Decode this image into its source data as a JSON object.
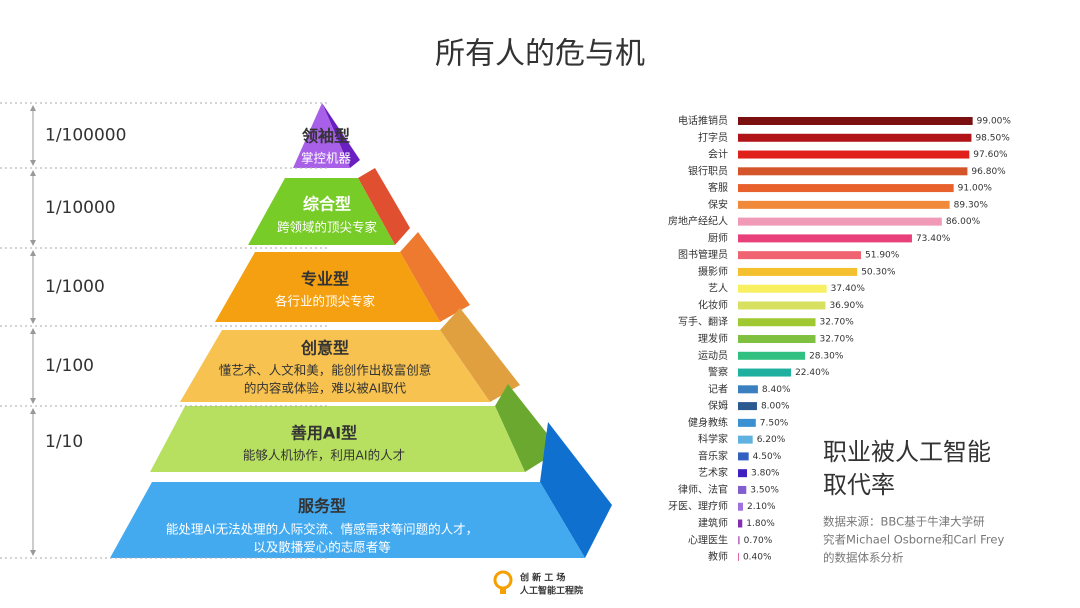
{
  "title": "所有人的危与机",
  "pyramid": {
    "levels": [
      {
        "ratio": "1/100000",
        "name": "领袖型",
        "desc": [
          "掌控机器"
        ]
      },
      {
        "ratio": "1/10000",
        "name": "综合型",
        "desc": [
          "跨领域的顶尖专家"
        ]
      },
      {
        "ratio": "1/1000",
        "name": "专业型",
        "desc": [
          "各行业的顶尖专家"
        ]
      },
      {
        "ratio": "1/100",
        "name": "创意型",
        "desc": [
          "懂艺术、人文和美，能创作出极富创意",
          "的内容或体验，难以被AI取代"
        ]
      },
      {
        "ratio": "1/10",
        "name": "善用AI型",
        "desc": [
          "能够人机协作，利用AI的人才"
        ]
      },
      {
        "ratio": null,
        "name": "服务型",
        "desc": [
          "能处理AI无法处理的人际交流、情感需求等问题的人才，",
          "以及散播爱心的志愿者等"
        ]
      }
    ]
  },
  "chart_data": {
    "type": "bar",
    "orientation": "horizontal",
    "categories": [
      "电话推销员",
      "打字员",
      "会计",
      "银行职员",
      "客服",
      "保安",
      "房地产经纪人",
      "厨师",
      "图书管理员",
      "摄影师",
      "艺人",
      "化妆师",
      "写手、翻译",
      "理发师",
      "运动员",
      "警察",
      "记者",
      "保姆",
      "健身教练",
      "科学家",
      "音乐家",
      "艺术家",
      "律师、法官",
      "牙医、理疗师",
      "建筑师",
      "心理医生",
      "教师"
    ],
    "values": [
      99,
      98.5,
      97.6,
      96.8,
      91,
      89.3,
      86,
      73.4,
      51.9,
      50.3,
      37.4,
      36.9,
      32.7,
      32.7,
      28.3,
      22.4,
      8.4,
      8,
      7.5,
      6.2,
      4.5,
      3.8,
      3.5,
      2.1,
      1.8,
      0.7,
      0.4
    ],
    "value_labels": [
      "99.00%",
      "98.50%",
      "97.60%",
      "96.80%",
      "91.00%",
      "89.30%",
      "86.00%",
      "73.40%",
      "51.90%",
      "50.30%",
      "37.40%",
      "36.90%",
      "32.70%",
      "32.70%",
      "28.30%",
      "22.40%",
      "8.40%",
      "8.00%",
      "7.50%",
      "6.20%",
      "4.50%",
      "3.80%",
      "3.50%",
      "2.10%",
      "1.80%",
      "0.70%",
      "0.40%"
    ],
    "colors": [
      "#7b1010",
      "#b01418",
      "#e0201a",
      "#d4552a",
      "#e8602c",
      "#f08a3a",
      "#f09ab8",
      "#e8407a",
      "#ef6470",
      "#f5c030",
      "#f8f060",
      "#d8e060",
      "#a0c830",
      "#80c040",
      "#30c080",
      "#20b0a0",
      "#3a80c0",
      "#2a5a90",
      "#3a90d0",
      "#60b0e0",
      "#3060c0",
      "#4020c0",
      "#8060d0",
      "#a070e0",
      "#8030b0",
      "#c070c0",
      "#e060a0"
    ],
    "xlim": [
      0,
      100
    ]
  },
  "caption": {
    "title": [
      "职业被人工智能",
      "取代率"
    ],
    "source": [
      "数据来源：BBC基于牛津大学研",
      "究者Michael Osborne和Carl Frey",
      "的数据体系分析"
    ]
  },
  "logo": {
    "name": "创 新 工 场",
    "sub": "人工智能工程院"
  }
}
